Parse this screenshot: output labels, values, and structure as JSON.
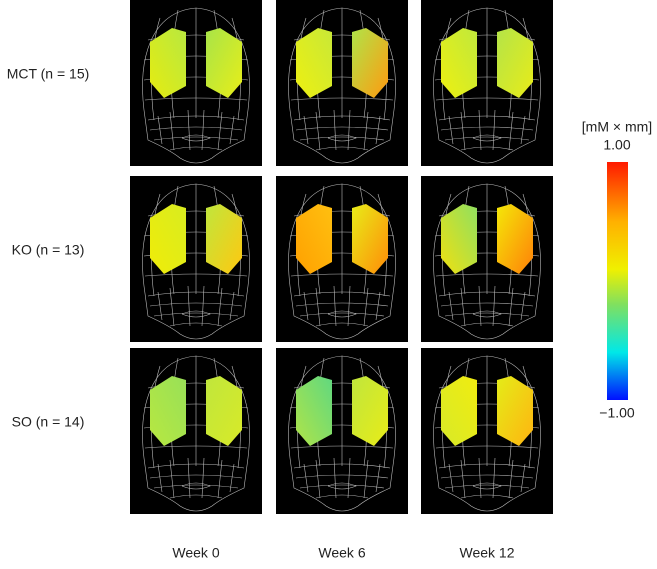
{
  "rows": [
    "MCT (n = 15)",
    "KO (n = 13)",
    "SO (n = 14)"
  ],
  "columns": [
    "Week 0",
    "Week 6",
    "Week 12"
  ],
  "colorbar": {
    "title": "[mM × mm]",
    "max_label": "1.00",
    "min_label": "−1.00"
  }
}
